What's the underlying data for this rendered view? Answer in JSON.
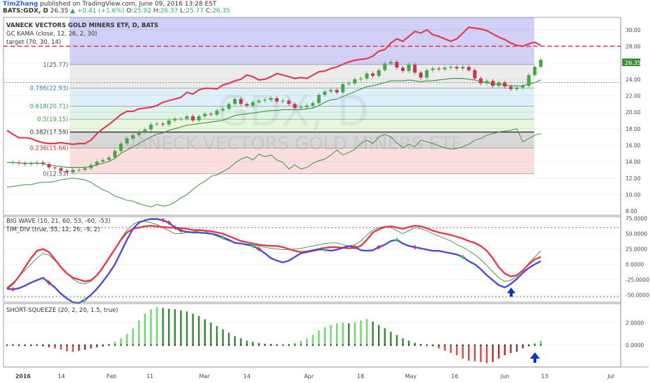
{
  "header": {
    "author": "TimZhang",
    "published": "published on TradingView.com, June 09, 2016 13:28 EST",
    "symbol": "BATS:GDX, D",
    "last": "26.35",
    "change": "▲ +0.41 (+1.6%)",
    "ohlc": {
      "o_label": "O:",
      "o": "25.92",
      "h_label": "H:",
      "h": "26.37",
      "l_label": "L:",
      "l": "25.77",
      "c_label": "C:",
      "c": "26.35"
    }
  },
  "colors": {
    "red": "#e53950",
    "green": "#3f8f3f",
    "blue": "#4b4bd6",
    "candle_up": "#45a845",
    "candle_down": "#c8344a",
    "fib_grid": "#555555"
  },
  "main": {
    "legend": [
      "VANECK VECTORS GOLD MINERS ETF, D, BATS",
      "GC KAMA (close, 12, 26, 2, 30)",
      "target (70, 30, 14)"
    ],
    "watermark_symbol": "GDX, D",
    "watermark_name": "VANECK VECTORS GOLD MINERS ETF",
    "price_badge": "26.35",
    "fib_labels": [
      "1(25.77)",
      "0.786(22.93)",
      "0.618(20.71)",
      "0.5(19.15)",
      "0.382(17.59)",
      "0.236(15.66)",
      "0(12.53)"
    ]
  },
  "bigwave": {
    "legend": [
      "BIG WAVE (10, 21, 60, 53, -60, -53)",
      "TIM_DIV (true, 55, 12, 26, -9, 2)"
    ]
  },
  "squeeze": {
    "legend": "SHORT-SQUEEZE (20, 2, 20, 1.5, true)"
  },
  "x_axis": {
    "labels": [
      "2016",
      "14",
      "Feb",
      "11",
      "Mar",
      "14",
      "Apr",
      "18",
      "May",
      "16",
      "Jun",
      "13",
      "Jul"
    ]
  },
  "chart_data": [
    {
      "type": "line",
      "title": "VANECK VECTORS GOLD MINERS ETF, D, BATS",
      "y_ticks": [
        "30.00",
        "28.00",
        "26.00",
        "24.00",
        "22.00",
        "20.00",
        "18.00",
        "16.00",
        "14.00",
        "12.00",
        "10.00",
        "8.00"
      ],
      "ylim": [
        7.5,
        31.5
      ],
      "target_line": 28.0,
      "fib_levels": [
        25.77,
        22.93,
        20.71,
        19.15,
        17.59,
        15.66,
        12.53
      ],
      "series": [
        {
          "name": "GC KAMA",
          "values": [
            17.8,
            17.3,
            16.9,
            16.9,
            16.8,
            16.5,
            16.3,
            16.2,
            16.2,
            16.3,
            16.2,
            16.1,
            16.2,
            16.2,
            16.6,
            17.4,
            18.0,
            18.5,
            19.1,
            19.7,
            20.1,
            20.1,
            20.4,
            20.5,
            20.6,
            20.8,
            21.2,
            21.4,
            21.6,
            21.8,
            22.4,
            22.2,
            22.7,
            22.9,
            22.9,
            22.8,
            23.3,
            23.5,
            23.8,
            24.0,
            24.5,
            24.3,
            23.9,
            24.0,
            24.3,
            24.7,
            24.5,
            24.3,
            24.1,
            24.2,
            24.1,
            24.5,
            24.9,
            25.0,
            25.3,
            25.5,
            25.8,
            26.1,
            26.3,
            26.4,
            26.5,
            26.8,
            27.4,
            27.6,
            28.4,
            28.9,
            28.6,
            29.2,
            29.8,
            29.6,
            30.0,
            29.4,
            29.2,
            28.9,
            28.6,
            28.9,
            29.6,
            30.3,
            30.2,
            30.1,
            29.9,
            29.5,
            29.1,
            28.8,
            28.4,
            28.1,
            28.0,
            28.3,
            28.5,
            28.1
          ]
        },
        {
          "name": "Close",
          "values": [
            13.9,
            13.9,
            13.8,
            13.7,
            13.8,
            13.9,
            13.7,
            13.3,
            13.2,
            12.9,
            12.7,
            13.0,
            13.0,
            13.2,
            13.6,
            14.0,
            14.2,
            14.5,
            15.3,
            16.2,
            16.8,
            17.2,
            17.6,
            17.9,
            18.5,
            18.6,
            18.5,
            19.0,
            19.2,
            19.2,
            19.5,
            19.0,
            19.5,
            19.8,
            19.7,
            20.2,
            20.4,
            21.0,
            21.6,
            21.0,
            20.8,
            21.2,
            21.4,
            21.5,
            21.7,
            21.3,
            21.4,
            21.0,
            20.5,
            20.6,
            20.8,
            21.1,
            22.1,
            22.5,
            22.7,
            22.4,
            23.4,
            23.5,
            24.0,
            24.1,
            24.7,
            24.4,
            25.1,
            25.9,
            26.1,
            25.4,
            25.0,
            25.8,
            24.8,
            24.2,
            25.1,
            25.3,
            25.2,
            25.4,
            25.5,
            25.3,
            25.5,
            25.1,
            24.1,
            23.5,
            23.8,
            23.2,
            23.6,
            23.1,
            22.8,
            23.0,
            23.2,
            24.5,
            25.5,
            26.35
          ]
        },
        {
          "name": "Kama",
          "values": [
            13.9,
            13.9,
            13.85,
            13.8,
            13.8,
            13.8,
            13.75,
            13.6,
            13.5,
            13.4,
            13.3,
            13.3,
            13.3,
            13.3,
            13.4,
            13.6,
            13.8,
            14.0,
            14.4,
            15.0,
            15.4,
            15.8,
            16.2,
            16.6,
            17.0,
            17.3,
            17.5,
            17.8,
            18.0,
            18.2,
            18.4,
            18.5,
            18.6,
            18.7,
            18.8,
            18.9,
            19.0,
            19.3,
            19.6,
            19.7,
            19.8,
            19.9,
            20.0,
            20.1,
            20.2,
            20.2,
            20.3,
            20.3,
            20.3,
            20.3,
            20.4,
            20.5,
            20.8,
            21.2,
            21.5,
            21.6,
            21.9,
            22.2,
            22.5,
            22.8,
            23.1,
            23.2,
            23.4,
            23.6,
            23.8,
            23.8,
            23.8,
            23.9,
            23.8,
            23.7,
            23.8,
            23.8,
            23.9,
            24.0,
            24.1,
            24.1,
            24.1,
            24.0,
            23.9,
            23.7,
            23.6,
            23.4,
            23.4,
            23.3,
            23.2,
            23.2,
            23.2,
            23.4,
            23.6,
            23.9
          ]
        },
        {
          "name": "Low",
          "values": [
            10.9,
            11.0,
            11.1,
            11.2,
            11.2,
            11.4,
            11.5,
            11.5,
            11.6,
            11.8,
            11.9,
            12.0,
            11.9,
            11.8,
            11.5,
            11.0,
            10.6,
            10.3,
            9.8,
            9.6,
            9.3,
            9.2,
            8.9,
            8.7,
            8.5,
            8.8,
            8.6,
            8.7,
            9.1,
            9.6,
            10.0,
            10.6,
            11.2,
            11.6,
            12.2,
            12.4,
            12.8,
            13.2,
            13.8,
            14.3,
            14.6,
            14.2,
            14.9,
            14.6,
            14.8,
            14.2,
            13.9,
            13.1,
            13.6,
            13.1,
            13.3,
            13.8,
            14.1,
            14.3,
            14.8,
            15.4,
            14.8,
            15.1,
            15.5,
            16.2,
            16.6,
            16.2,
            17.0,
            17.3,
            17.0,
            16.3,
            15.7,
            16.1,
            15.8,
            16.6,
            16.4,
            16.2,
            15.9,
            15.7,
            15.5,
            15.6,
            15.8,
            16.1,
            16.6,
            16.8,
            17.2,
            17.4,
            17.6,
            17.7,
            17.8,
            18.0,
            16.4,
            16.8,
            17.2,
            17.4
          ]
        }
      ]
    },
    {
      "type": "line",
      "title": "BIG WAVE (10, 21, 60, 53, -60, -53)",
      "y_ticks": [
        "75.0000",
        "50.0000",
        "25.0000",
        "0.0000",
        "-25.0000",
        "-50.0000"
      ],
      "ylim": [
        -62,
        78
      ],
      "levels": [
        60,
        -53
      ],
      "series": [
        {
          "name": "Red",
          "values": [
            -40,
            -32,
            -20,
            -5,
            10,
            22,
            25,
            20,
            8,
            -5,
            -15,
            -22,
            -25,
            -28,
            -26,
            -18,
            -5,
            10,
            25,
            40,
            52,
            58,
            60,
            62,
            63,
            62,
            61,
            60,
            60,
            59,
            58,
            56,
            56,
            55,
            54,
            52,
            50,
            46,
            42,
            38,
            36,
            34,
            32,
            31,
            30,
            30,
            28,
            25,
            22,
            20,
            21,
            23,
            25,
            27,
            28,
            28,
            27,
            26,
            27,
            30,
            40,
            52,
            57,
            61,
            62,
            60,
            58,
            61,
            63,
            62,
            59,
            55,
            52,
            50,
            48,
            45,
            42,
            38,
            35,
            30,
            22,
            10,
            -5,
            -15,
            -20,
            -18,
            -10,
            0,
            8,
            12
          ]
        },
        {
          "name": "Blue",
          "values": [
            -40,
            -41,
            -39,
            -35,
            -30,
            -26,
            -22,
            -30,
            -38,
            -48,
            -56,
            -62,
            -63,
            -58,
            -50,
            -40,
            -28,
            -15,
            0,
            20,
            40,
            58,
            68,
            72,
            74,
            74,
            72,
            68,
            60,
            55,
            53,
            52,
            52,
            51,
            50,
            48,
            44,
            40,
            35,
            34,
            32,
            30,
            25,
            18,
            10,
            6,
            3,
            6,
            12,
            18,
            20,
            22,
            24,
            24,
            22,
            24,
            27,
            30,
            28,
            23,
            22,
            23,
            28,
            32,
            38,
            40,
            34,
            30,
            28,
            26,
            24,
            22,
            22,
            20,
            18,
            16,
            12,
            5,
            0,
            -8,
            -18,
            -26,
            -34,
            -38,
            -32,
            -24,
            -14,
            -6,
            0,
            5
          ]
        },
        {
          "name": "Green",
          "values": [
            -38,
            -30,
            -20,
            -10,
            0,
            10,
            18,
            15,
            6,
            -4,
            -14,
            -24,
            -30,
            -32,
            -28,
            -18,
            -5,
            10,
            25,
            42,
            56,
            65,
            70,
            70,
            68,
            65,
            60,
            55,
            50,
            50,
            52,
            53,
            55,
            54,
            50,
            46,
            42,
            38,
            36,
            34,
            33,
            32,
            30,
            28,
            26,
            25,
            24,
            24,
            25,
            26,
            28,
            30,
            32,
            34,
            35,
            35,
            32,
            30,
            32,
            38,
            48,
            56,
            60,
            62,
            60,
            55,
            50,
            55,
            60,
            58,
            55,
            50,
            46,
            42,
            38,
            32,
            28,
            22,
            16,
            8,
            -2,
            -12,
            -22,
            -28,
            -26,
            -20,
            -10,
            2,
            12,
            22
          ]
        }
      ]
    },
    {
      "type": "bar",
      "title": "SHORT-SQUEEZE (20, 2, 20, 1.5, true)",
      "y_ticks": [
        "2.0000",
        "0.0000"
      ],
      "ylim": [
        -1.95,
        3.7
      ],
      "values": [
        0.05,
        -0.05,
        -0.08,
        -0.1,
        -0.08,
        -0.05,
        -0.12,
        -0.2,
        -0.3,
        -0.4,
        -0.55,
        -0.6,
        -0.5,
        -0.42,
        -0.3,
        -0.2,
        -0.12,
        0.1,
        0.3,
        0.6,
        1.0,
        1.5,
        2.2,
        2.8,
        3.2,
        3.4,
        3.3,
        3.25,
        3.2,
        3.1,
        3.0,
        2.8,
        2.6,
        2.3,
        2.0,
        1.7,
        1.4,
        1.1,
        0.8,
        0.6,
        0.4,
        0.3,
        0.2,
        0.12,
        0.1,
        0.05,
        -0.05,
        0.1,
        0.2,
        0.4,
        0.6,
        0.9,
        1.3,
        1.6,
        1.8,
        1.95,
        2.0,
        1.95,
        2.05,
        2.2,
        2.35,
        2.1,
        1.8,
        1.5,
        1.2,
        0.9,
        0.6,
        0.4,
        0.2,
        0.1,
        0.05,
        -0.1,
        -0.3,
        -0.5,
        -0.7,
        -0.9,
        -1.2,
        -1.4,
        -1.45,
        -1.5,
        -1.6,
        -1.5,
        -1.2,
        -0.9,
        -0.7,
        -0.6,
        -0.3,
        -0.1,
        0.2,
        0.4
      ]
    }
  ]
}
